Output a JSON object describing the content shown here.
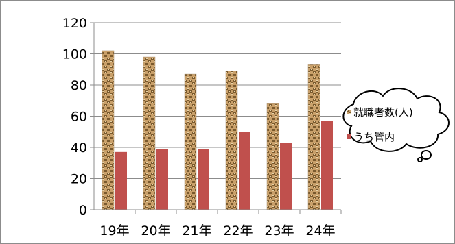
{
  "chart_data": {
    "type": "bar",
    "categories": [
      "19年",
      "20年",
      "21年",
      "22年",
      "23年",
      "24年"
    ],
    "series": [
      {
        "name": "就職者数(人)",
        "values": [
          102,
          98,
          87,
          89,
          68,
          93
        ],
        "color": "#c9a06a",
        "pattern": "brick-texture"
      },
      {
        "name": "うち管内",
        "values": [
          37,
          39,
          39,
          50,
          43,
          57
        ],
        "color": "#c0504d"
      }
    ],
    "ylim": [
      0,
      120
    ],
    "yticks": [
      0,
      20,
      40,
      60,
      80,
      100,
      120
    ],
    "grid": true,
    "legend": "right, inside a thought-bubble callout"
  }
}
